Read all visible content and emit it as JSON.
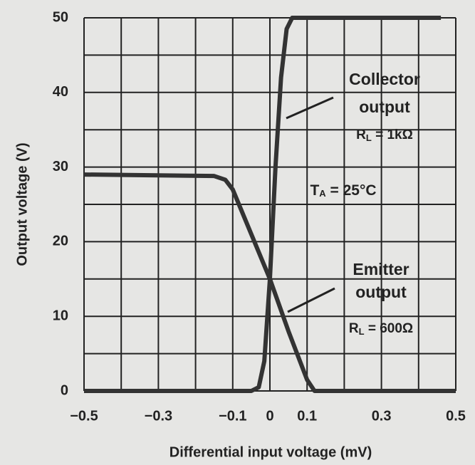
{
  "chart_data": {
    "type": "line",
    "xlabel": "Differential input voltage (mV)",
    "ylabel": "Output voltage (V)",
    "xlim": [
      -0.5,
      0.5
    ],
    "ylim": [
      0,
      50
    ],
    "xticks": [
      {
        "value": -0.5,
        "label": "−0.5"
      },
      {
        "value": -0.3,
        "label": "−0.3"
      },
      {
        "value": -0.1,
        "label": "−0.1"
      },
      0,
      0.1,
      0.3,
      0.5
    ],
    "yticks": [
      0,
      10,
      20,
      30,
      40,
      50
    ],
    "xgrid": [
      -0.5,
      -0.4,
      -0.3,
      -0.2,
      -0.1,
      0,
      0.1,
      0.2,
      0.3,
      0.4,
      0.5
    ],
    "ygrid": [
      0,
      5,
      10,
      15,
      20,
      25,
      30,
      35,
      40,
      45,
      50
    ],
    "grid": true,
    "series": [
      {
        "name": "Collector output",
        "color": "#333333",
        "x": [
          -0.5,
          -0.05,
          -0.03,
          -0.015,
          0,
          0.015,
          0.03,
          0.045,
          0.06,
          0.46
        ],
        "values": [
          0,
          0,
          0.5,
          4,
          15,
          30,
          42,
          48.5,
          50,
          50
        ]
      },
      {
        "name": "Emitter output",
        "color": "#333333",
        "x": [
          -0.5,
          -0.15,
          -0.12,
          -0.1,
          -0.05,
          0,
          0.05,
          0.1,
          0.12,
          0.5
        ],
        "values": [
          29,
          28.8,
          28.3,
          27,
          21,
          15,
          8,
          1.5,
          0,
          0
        ]
      }
    ],
    "annotations": {
      "collector": {
        "line1": "Collector",
        "line2": "output",
        "r": "R",
        "r_sub": "L",
        "r_rest": " = 1kΩ"
      },
      "temperature": {
        "t": "T",
        "t_sub": "A",
        "t_rest": " = 25°C"
      },
      "emitter": {
        "line1": "Emitter",
        "line2": "output",
        "r": "R",
        "r_sub": "L",
        "r_rest": " = 600Ω"
      }
    }
  }
}
